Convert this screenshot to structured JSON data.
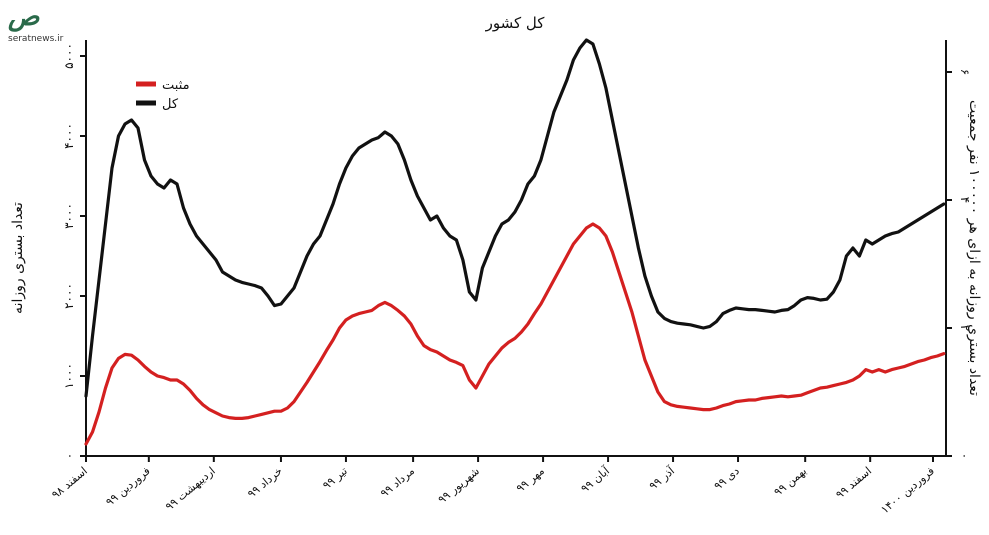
{
  "watermark": {
    "site": "seratnews.ir"
  },
  "chart_data": {
    "type": "line",
    "title": "کل کشور",
    "ylabel": "تعداد بستری روزانه",
    "y2label": "تعداد بستری روزانه به ازای هر ۱۰۰۰۰۰ نفر جمعیت",
    "ylim": [
      0,
      5200
    ],
    "y2lim": [
      0,
      6.5
    ],
    "yticks": [
      0,
      1000,
      2000,
      3000,
      4000,
      5000
    ],
    "yticklabels": [
      "۰",
      "۱۰۰۰",
      "۲۰۰۰",
      "۳۰۰۰",
      "۴۰۰۰",
      "۵۰۰۰"
    ],
    "y2ticks": [
      0,
      2,
      4,
      6
    ],
    "y2ticklabels": [
      "۰",
      "۲",
      "۴",
      "۶"
    ],
    "xlim": [
      0,
      397
    ],
    "xticks": [
      0,
      29,
      59,
      90,
      120,
      151,
      181,
      211,
      241,
      271,
      301,
      332,
      362,
      391
    ],
    "xticklabels": [
      "اسفند ۹۸",
      "فروردین ۹۹",
      "اردیبهشت ۹۹",
      "خرداد ۹۹",
      "تیر ۹۹",
      "مرداد ۹۹",
      "شهریور ۹۹",
      "مهر ۹۹",
      "آبان ۹۹",
      "آذر ۹۹",
      "دی ۹۹",
      "بهمن ۹۹",
      "اسفند ۹۹",
      "فروردین ۱۴۰۰"
    ],
    "legend": {
      "position": "top-left",
      "entries": [
        {
          "name": "مثبت",
          "color": "#d42020"
        },
        {
          "name": "کل",
          "color": "#111111"
        }
      ]
    },
    "grid": false,
    "series": [
      {
        "name": "کل",
        "color": "#111111",
        "x": [
          0,
          3,
          6,
          9,
          12,
          15,
          18,
          21,
          24,
          27,
          30,
          33,
          36,
          39,
          42,
          45,
          48,
          51,
          54,
          57,
          60,
          63,
          66,
          69,
          72,
          75,
          78,
          81,
          84,
          87,
          90,
          93,
          96,
          99,
          102,
          105,
          108,
          111,
          114,
          117,
          120,
          123,
          126,
          129,
          132,
          135,
          138,
          141,
          144,
          147,
          150,
          153,
          156,
          159,
          162,
          165,
          168,
          171,
          174,
          177,
          180,
          183,
          186,
          189,
          192,
          195,
          198,
          201,
          204,
          207,
          210,
          213,
          216,
          219,
          222,
          225,
          228,
          231,
          234,
          237,
          240,
          243,
          246,
          249,
          252,
          255,
          258,
          261,
          264,
          267,
          270,
          273,
          276,
          279,
          282,
          285,
          288,
          291,
          294,
          297,
          300,
          303,
          306,
          309,
          312,
          315,
          318,
          321,
          324,
          327,
          330,
          333,
          336,
          339,
          342,
          345,
          348,
          351,
          354,
          357,
          360,
          363,
          366,
          369,
          372,
          375,
          378,
          381,
          384,
          387,
          390,
          393,
          396
        ],
        "y": [
          750,
          1500,
          2200,
          2900,
          3600,
          4000,
          4150,
          4200,
          4100,
          3700,
          3500,
          3400,
          3350,
          3450,
          3400,
          3100,
          2900,
          2750,
          2650,
          2550,
          2450,
          2300,
          2250,
          2200,
          2170,
          2150,
          2130,
          2100,
          2000,
          1880,
          1900,
          2000,
          2100,
          2300,
          2500,
          2650,
          2750,
          2950,
          3150,
          3400,
          3600,
          3750,
          3850,
          3900,
          3950,
          3980,
          4050,
          4000,
          3900,
          3700,
          3450,
          3250,
          3100,
          2950,
          3000,
          2850,
          2750,
          2700,
          2450,
          2050,
          1950,
          2350,
          2550,
          2750,
          2900,
          2950,
          3050,
          3200,
          3400,
          3500,
          3700,
          4000,
          4300,
          4500,
          4700,
          4950,
          5100,
          5200,
          5150,
          4900,
          4600,
          4200,
          3800,
          3400,
          3000,
          2600,
          2250,
          2000,
          1800,
          1720,
          1680,
          1660,
          1650,
          1640,
          1620,
          1600,
          1620,
          1680,
          1780,
          1820,
          1850,
          1840,
          1830,
          1830,
          1820,
          1810,
          1800,
          1820,
          1830,
          1880,
          1950,
          1980,
          1970,
          1950,
          1960,
          2050,
          2200,
          2500,
          2600,
          2500,
          2700,
          2650,
          2700,
          2750,
          2780,
          2800,
          2850,
          2900,
          2950,
          3000,
          3050,
          3100,
          3150
        ]
      },
      {
        "name": "مثبت",
        "color": "#d42020",
        "x": [
          0,
          3,
          6,
          9,
          12,
          15,
          18,
          21,
          24,
          27,
          30,
          33,
          36,
          39,
          42,
          45,
          48,
          51,
          54,
          57,
          60,
          63,
          66,
          69,
          72,
          75,
          78,
          81,
          84,
          87,
          90,
          93,
          96,
          99,
          102,
          105,
          108,
          111,
          114,
          117,
          120,
          123,
          126,
          129,
          132,
          135,
          138,
          141,
          144,
          147,
          150,
          153,
          156,
          159,
          162,
          165,
          168,
          171,
          174,
          177,
          180,
          183,
          186,
          189,
          192,
          195,
          198,
          201,
          204,
          207,
          210,
          213,
          216,
          219,
          222,
          225,
          228,
          231,
          234,
          237,
          240,
          243,
          246,
          249,
          252,
          255,
          258,
          261,
          264,
          267,
          270,
          273,
          276,
          279,
          282,
          285,
          288,
          291,
          294,
          297,
          300,
          303,
          306,
          309,
          312,
          315,
          318,
          321,
          324,
          327,
          330,
          333,
          336,
          339,
          342,
          345,
          348,
          351,
          354,
          357,
          360,
          363,
          366,
          369,
          372,
          375,
          378,
          381,
          384,
          387,
          390,
          393,
          396
        ],
        "y": [
          150,
          300,
          550,
          850,
          1100,
          1220,
          1270,
          1260,
          1200,
          1120,
          1050,
          1000,
          980,
          950,
          950,
          900,
          820,
          720,
          640,
          580,
          540,
          500,
          480,
          470,
          470,
          480,
          500,
          520,
          540,
          560,
          560,
          600,
          680,
          800,
          920,
          1050,
          1180,
          1320,
          1450,
          1600,
          1700,
          1750,
          1780,
          1800,
          1820,
          1880,
          1920,
          1880,
          1820,
          1750,
          1650,
          1500,
          1380,
          1330,
          1300,
          1250,
          1200,
          1170,
          1130,
          950,
          850,
          1000,
          1150,
          1250,
          1350,
          1420,
          1470,
          1550,
          1650,
          1780,
          1900,
          2050,
          2200,
          2350,
          2500,
          2650,
          2750,
          2850,
          2900,
          2850,
          2750,
          2550,
          2300,
          2050,
          1800,
          1500,
          1200,
          1000,
          800,
          680,
          640,
          620,
          610,
          600,
          590,
          580,
          580,
          600,
          630,
          650,
          680,
          690,
          700,
          700,
          720,
          730,
          740,
          750,
          740,
          750,
          760,
          790,
          820,
          850,
          860,
          880,
          900,
          920,
          950,
          1000,
          1080,
          1050,
          1080,
          1050,
          1080,
          1100,
          1120,
          1150,
          1180,
          1200,
          1230,
          1250,
          1280
        ]
      }
    ]
  }
}
